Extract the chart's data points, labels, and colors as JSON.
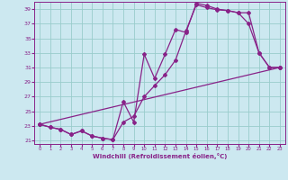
{
  "xlabel": "Windchill (Refroidissement éolien,°C)",
  "bg_color": "#cce8f0",
  "line_color": "#882288",
  "grid_color": "#99cccc",
  "xlim": [
    -0.5,
    23.5
  ],
  "ylim": [
    20.5,
    40.0
  ],
  "yticks": [
    21,
    23,
    25,
    27,
    29,
    31,
    33,
    35,
    37,
    39
  ],
  "xticks": [
    0,
    1,
    2,
    3,
    4,
    5,
    6,
    7,
    8,
    9,
    10,
    11,
    12,
    13,
    14,
    15,
    16,
    17,
    18,
    19,
    20,
    21,
    22,
    23
  ],
  "line1_x": [
    0,
    1,
    2,
    3,
    4,
    5,
    6,
    7,
    8,
    9,
    10,
    11,
    12,
    13,
    14,
    15,
    16,
    17,
    18,
    19,
    20,
    21,
    22,
    23
  ],
  "line1_y": [
    23.2,
    22.8,
    22.5,
    21.8,
    22.3,
    21.6,
    21.3,
    21.1,
    26.3,
    23.5,
    32.8,
    29.5,
    32.8,
    36.2,
    35.8,
    39.8,
    39.5,
    39.0,
    38.8,
    38.5,
    37.0,
    33.0,
    31.0,
    31.0
  ],
  "line2_x": [
    0,
    1,
    2,
    3,
    4,
    5,
    6,
    7,
    8,
    9,
    10,
    11,
    12,
    13,
    14,
    15,
    16,
    17,
    18,
    19,
    20,
    21,
    22,
    23
  ],
  "line2_y": [
    23.2,
    22.8,
    22.5,
    21.8,
    22.3,
    21.6,
    21.3,
    21.1,
    23.5,
    24.3,
    27.0,
    28.5,
    30.0,
    32.0,
    36.0,
    39.6,
    39.2,
    38.9,
    38.8,
    38.5,
    38.5,
    33.0,
    31.0,
    31.0
  ],
  "line3_x": [
    0,
    23
  ],
  "line3_y": [
    23.2,
    31.0
  ]
}
